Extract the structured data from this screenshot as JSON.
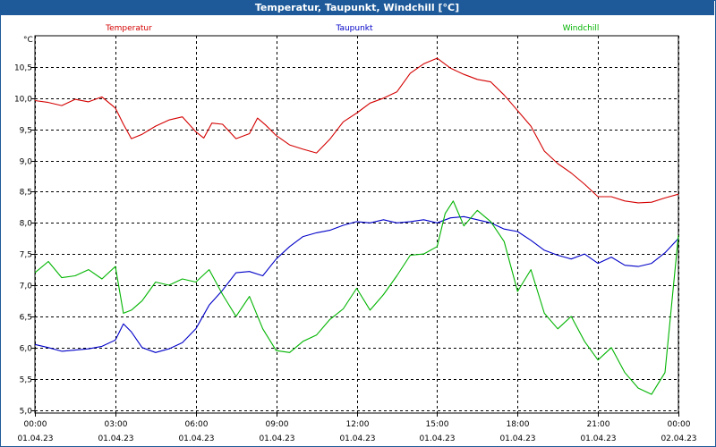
{
  "window": {
    "title": "Temperatur, Taupunkt, Windchill [°C]"
  },
  "colors": {
    "titlebar": "#1e5a99",
    "grid": "#000000"
  },
  "chart_data": {
    "type": "line",
    "title": "Temperatur, Taupunkt, Windchill [°C]",
    "ylabel": "°C",
    "ylim": [
      5.0,
      11.0
    ],
    "xlim_hours": [
      0,
      24
    ],
    "grid": true,
    "legend_position": "top",
    "y_ticks": [
      "5,0",
      "5,5",
      "6,0",
      "6,5",
      "7,0",
      "7,5",
      "8,0",
      "8,5",
      "9,0",
      "9,5",
      "10,0",
      "10,5"
    ],
    "x_ticks": [
      {
        "time": "00:00",
        "date": "01.04.23"
      },
      {
        "time": "03:00",
        "date": "01.04.23"
      },
      {
        "time": "06:00",
        "date": "01.04.23"
      },
      {
        "time": "09:00",
        "date": "01.04.23"
      },
      {
        "time": "12:00",
        "date": "01.04.23"
      },
      {
        "time": "15:00",
        "date": "01.04.23"
      },
      {
        "time": "18:00",
        "date": "01.04.23"
      },
      {
        "time": "21:00",
        "date": "01.04.23"
      },
      {
        "time": "00:00",
        "date": "02.04.23"
      }
    ],
    "series": [
      {
        "name": "Temperatur",
        "color": "#d40000",
        "x": [
          0,
          0.5,
          1,
          1.5,
          2,
          2.5,
          3,
          3.3,
          3.6,
          4,
          4.5,
          5,
          5.5,
          6,
          6.3,
          6.6,
          7,
          7.5,
          8,
          8.3,
          8.6,
          9,
          9.5,
          10,
          10.5,
          11,
          11.5,
          12,
          12.5,
          13,
          13.5,
          14,
          14.5,
          15,
          15.5,
          16,
          16.5,
          17,
          17.5,
          18,
          18.5,
          19,
          19.5,
          20,
          20.5,
          21,
          21.5,
          22,
          22.5,
          23,
          23.5,
          24
        ],
        "values": [
          9.96,
          9.93,
          9.88,
          9.98,
          9.94,
          10.02,
          9.84,
          9.58,
          9.35,
          9.42,
          9.55,
          9.65,
          9.7,
          9.46,
          9.36,
          9.6,
          9.58,
          9.35,
          9.43,
          9.68,
          9.57,
          9.4,
          9.25,
          9.18,
          9.12,
          9.34,
          9.62,
          9.76,
          9.92,
          10.0,
          10.1,
          10.4,
          10.55,
          10.64,
          10.48,
          10.38,
          10.3,
          10.26,
          10.05,
          9.8,
          9.55,
          9.15,
          8.95,
          8.8,
          8.62,
          8.42,
          8.42,
          8.35,
          8.32,
          8.33,
          8.4,
          8.46
        ]
      },
      {
        "name": "Taupunkt",
        "color": "#0000c8",
        "x": [
          0,
          0.5,
          1,
          1.5,
          2,
          2.5,
          3,
          3.3,
          3.6,
          4,
          4.5,
          5,
          5.5,
          6,
          6.5,
          7,
          7.5,
          8,
          8.5,
          9,
          9.5,
          10,
          10.5,
          11,
          11.5,
          12,
          12.5,
          13,
          13.5,
          14,
          14.5,
          15,
          15.5,
          16,
          16.5,
          17,
          17.5,
          18,
          18.5,
          19,
          19.5,
          20,
          20.5,
          21,
          21.5,
          22,
          22.5,
          23,
          23.5,
          24
        ],
        "values": [
          6.05,
          6.0,
          5.94,
          5.96,
          5.98,
          6.02,
          6.12,
          6.38,
          6.25,
          6.0,
          5.92,
          5.98,
          6.08,
          6.3,
          6.68,
          6.92,
          7.2,
          7.22,
          7.15,
          7.42,
          7.62,
          7.78,
          7.84,
          7.88,
          7.96,
          8.02,
          8.0,
          8.05,
          8.0,
          8.02,
          8.05,
          8.0,
          8.08,
          8.1,
          8.05,
          8.0,
          7.9,
          7.86,
          7.72,
          7.56,
          7.48,
          7.42,
          7.5,
          7.35,
          7.45,
          7.32,
          7.3,
          7.35,
          7.52,
          7.75
        ]
      },
      {
        "name": "Windchill",
        "color": "#00b400",
        "x": [
          0,
          0.5,
          1,
          1.5,
          2,
          2.5,
          3,
          3.3,
          3.6,
          4,
          4.5,
          5,
          5.5,
          6,
          6.5,
          7,
          7.5,
          8,
          8.5,
          9,
          9.5,
          10,
          10.5,
          11,
          11.5,
          12,
          12.5,
          13,
          13.5,
          14,
          14.5,
          15,
          15.3,
          15.6,
          16,
          16.5,
          17,
          17.5,
          18,
          18.5,
          19,
          19.5,
          20,
          20.5,
          21,
          21.5,
          22,
          22.5,
          23,
          23.5,
          24
        ],
        "values": [
          7.2,
          7.38,
          7.12,
          7.15,
          7.25,
          7.1,
          7.3,
          6.55,
          6.6,
          6.75,
          7.05,
          7.0,
          7.1,
          7.05,
          7.25,
          6.85,
          6.5,
          6.82,
          6.3,
          5.95,
          5.92,
          6.1,
          6.2,
          6.45,
          6.62,
          6.95,
          6.6,
          6.85,
          7.15,
          7.48,
          7.5,
          7.62,
          8.15,
          8.35,
          7.95,
          8.2,
          8.02,
          7.7,
          6.9,
          7.25,
          6.55,
          6.3,
          6.5,
          6.1,
          5.8,
          6.0,
          5.6,
          5.35,
          5.25,
          5.6,
          7.8
        ]
      }
    ]
  }
}
